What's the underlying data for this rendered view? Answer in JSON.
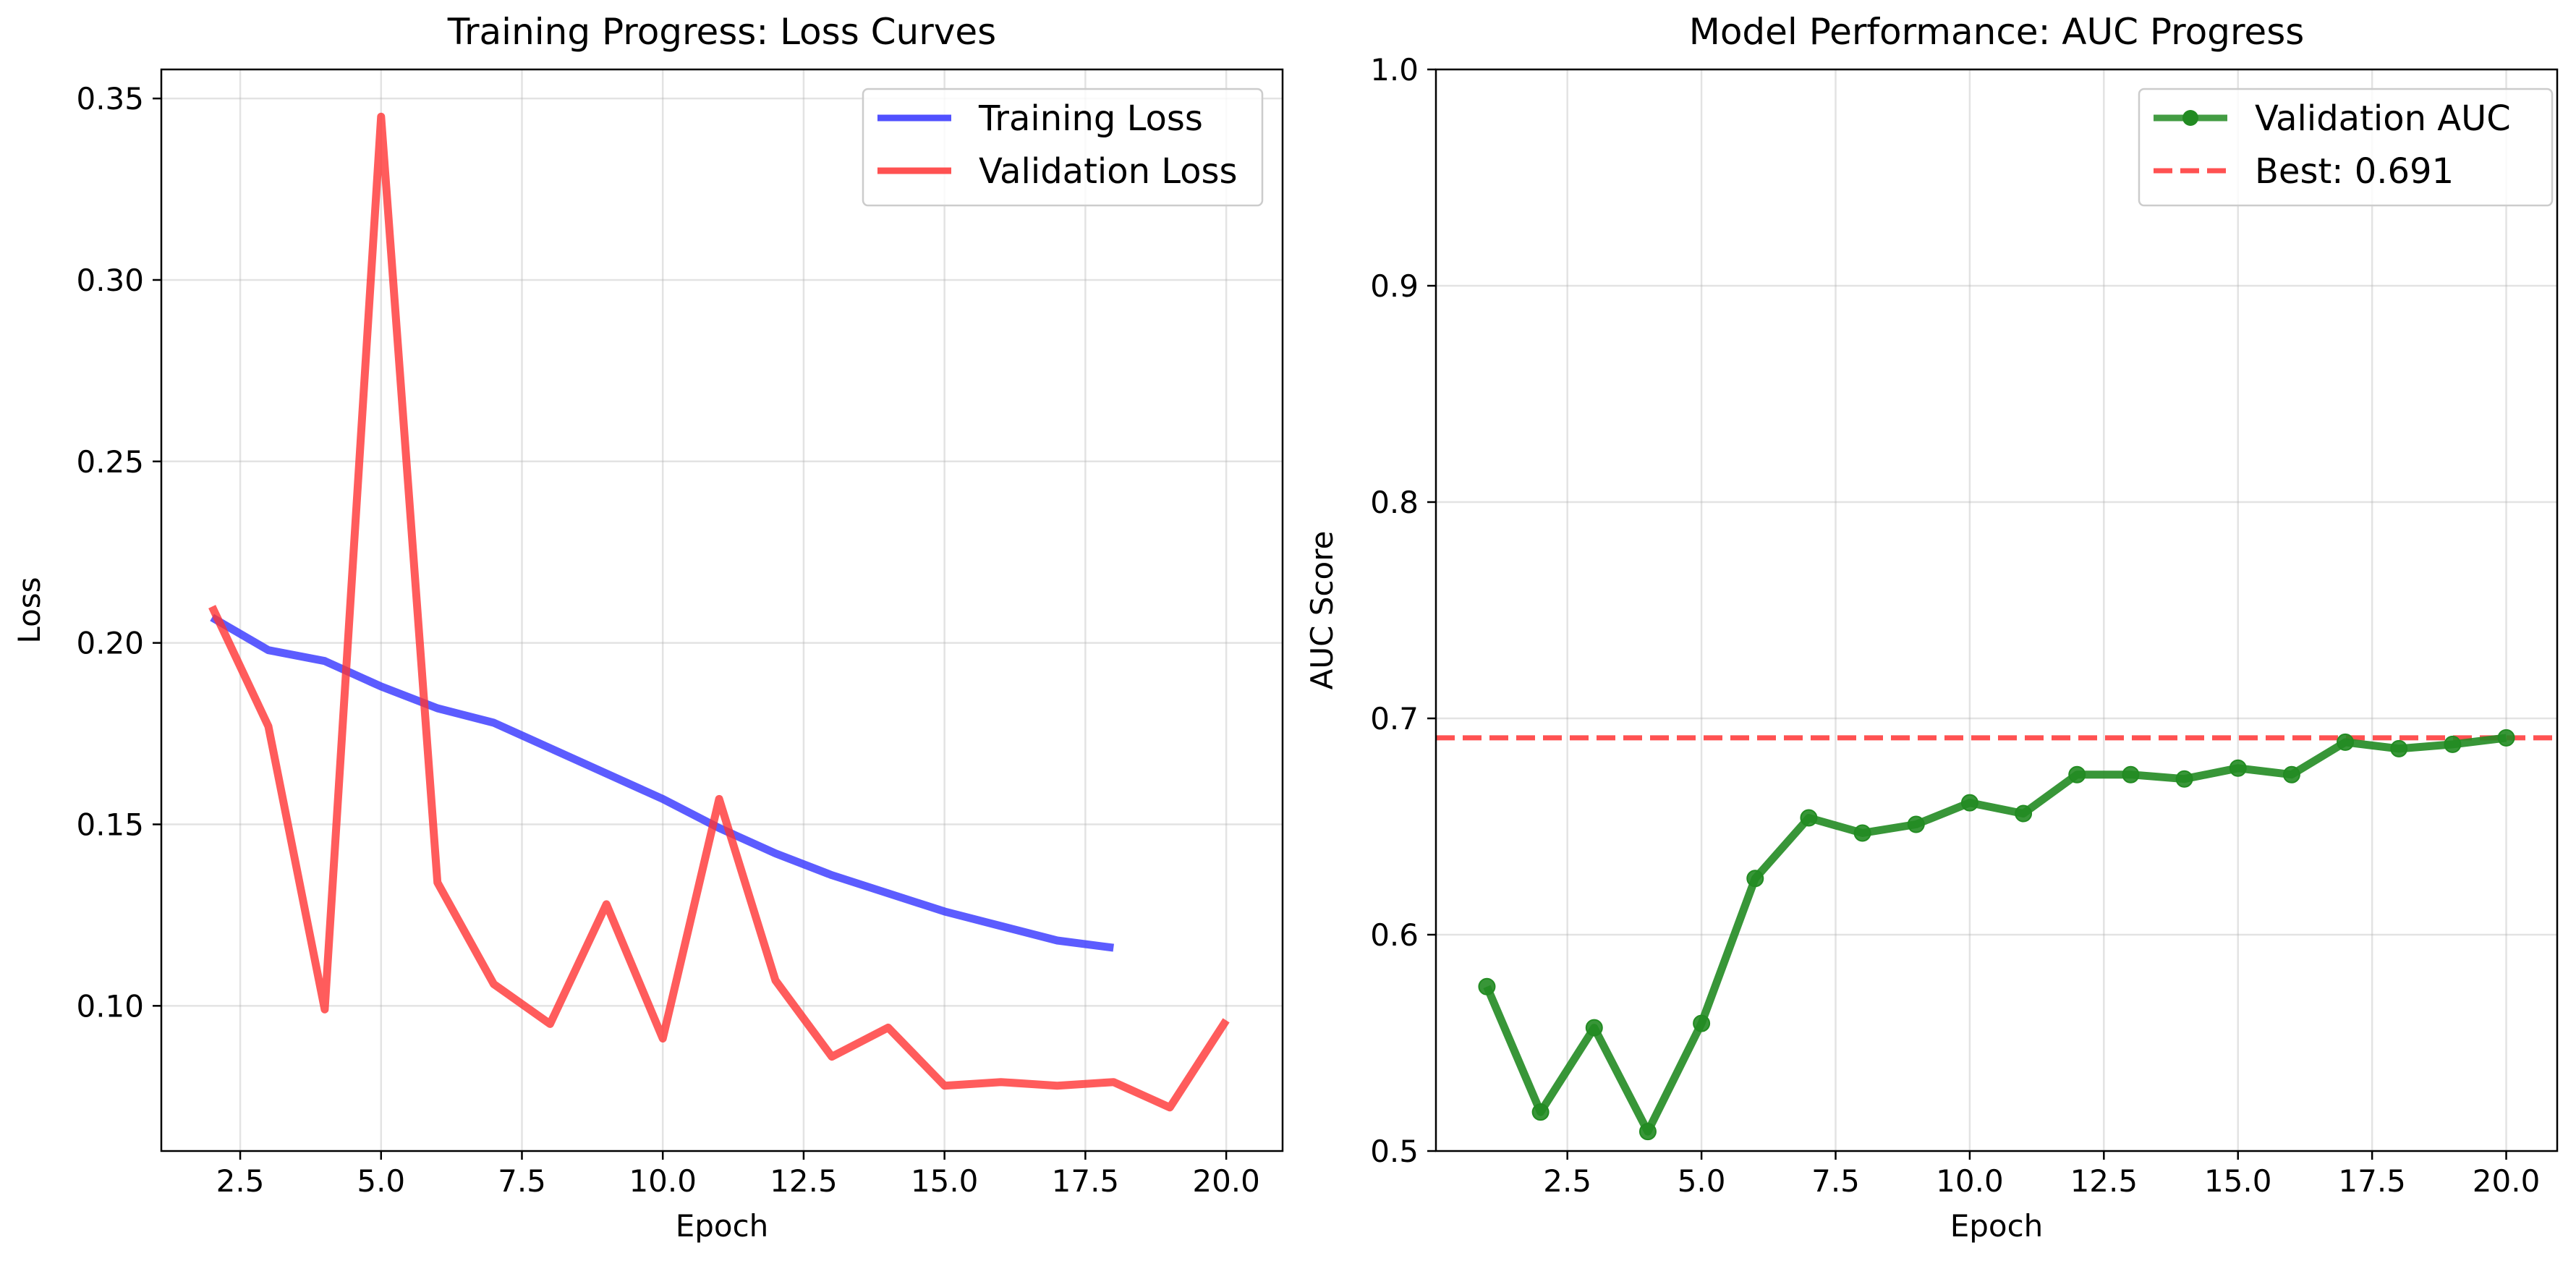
{
  "chart_data": [
    {
      "type": "line",
      "title": "Training Progress: Loss Curves",
      "xlabel": "Epoch",
      "ylabel": "Loss",
      "xlim": [
        1.1,
        21.0
      ],
      "ylim": [
        0.06,
        0.358
      ],
      "xticks": [
        2.5,
        5.0,
        7.5,
        10.0,
        12.5,
        15.0,
        17.5,
        20.0
      ],
      "xtick_labels": [
        "2.5",
        "5.0",
        "7.5",
        "10.0",
        "12.5",
        "15.0",
        "17.5",
        "20.0"
      ],
      "yticks": [
        0.1,
        0.15,
        0.2,
        0.25,
        0.3,
        0.35
      ],
      "ytick_labels": [
        "0.10",
        "0.15",
        "0.20",
        "0.25",
        "0.30",
        "0.35"
      ],
      "grid": true,
      "legend_position": "top-right",
      "series": [
        {
          "name": "Training Loss",
          "color": "#3333ff",
          "x": [
            2,
            3,
            4,
            5,
            6,
            7,
            8,
            9,
            10,
            11,
            12,
            13,
            14,
            15,
            16,
            17,
            18
          ],
          "y": [
            0.207,
            0.198,
            0.195,
            0.188,
            0.182,
            0.178,
            0.171,
            0.164,
            0.157,
            0.149,
            0.142,
            0.136,
            0.131,
            0.126,
            0.122,
            0.118,
            0.116
          ]
        },
        {
          "name": "Validation Loss",
          "color": "#ff3333",
          "x": [
            2,
            3,
            4,
            5,
            6,
            7,
            8,
            9,
            10,
            11,
            12,
            13,
            14,
            15,
            16,
            17,
            18,
            19,
            20
          ],
          "y": [
            0.21,
            0.177,
            0.099,
            0.345,
            0.134,
            0.106,
            0.095,
            0.128,
            0.091,
            0.157,
            0.107,
            0.086,
            0.094,
            0.078,
            0.079,
            0.078,
            0.079,
            0.072,
            0.096
          ]
        }
      ]
    },
    {
      "type": "line",
      "title": "Model Performance: AUC Progress",
      "xlabel": "Epoch",
      "ylabel": "AUC Score",
      "xlim": [
        0.05,
        20.95
      ],
      "ylim": [
        0.5,
        1.0
      ],
      "xticks": [
        2.5,
        5.0,
        7.5,
        10.0,
        12.5,
        15.0,
        17.5,
        20.0
      ],
      "xtick_labels": [
        "2.5",
        "5.0",
        "7.5",
        "10.0",
        "12.5",
        "15.0",
        "17.5",
        "20.0"
      ],
      "yticks": [
        0.5,
        0.6,
        0.7,
        0.8,
        0.9,
        1.0
      ],
      "ytick_labels": [
        "0.5",
        "0.6",
        "0.7",
        "0.8",
        "0.9",
        "1.0"
      ],
      "grid": true,
      "legend_position": "top-right",
      "series": [
        {
          "name": "Validation AUC",
          "color": "#228B22",
          "markers": true,
          "x": [
            1,
            2,
            3,
            4,
            5,
            6,
            7,
            8,
            9,
            10,
            11,
            12,
            13,
            14,
            15,
            16,
            17,
            18,
            19,
            20
          ],
          "y": [
            0.576,
            0.518,
            0.557,
            0.509,
            0.559,
            0.626,
            0.654,
            0.647,
            0.651,
            0.661,
            0.656,
            0.674,
            0.674,
            0.672,
            0.677,
            0.674,
            0.689,
            0.686,
            0.688,
            0.691
          ]
        }
      ],
      "reference_lines": [
        {
          "name": "Best: 0.691",
          "value": 0.691,
          "orientation": "horizontal",
          "style": "dashed",
          "color": "#ff3333"
        }
      ]
    }
  ]
}
